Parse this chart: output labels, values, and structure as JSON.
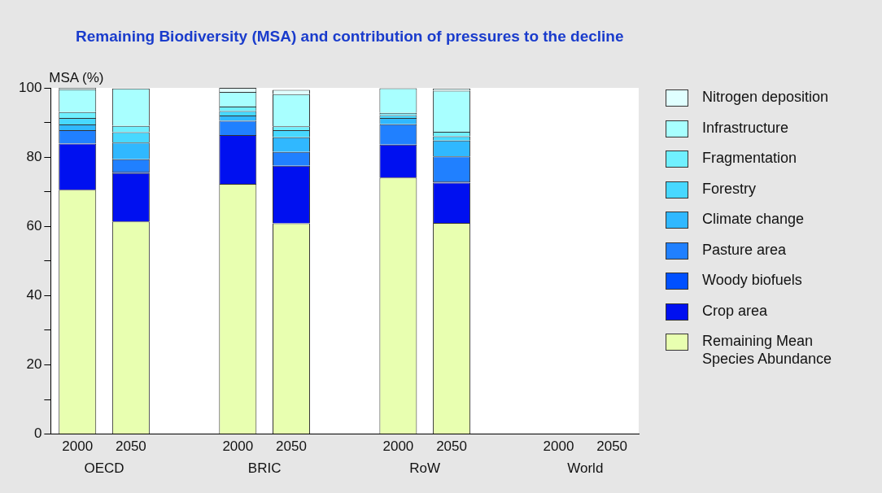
{
  "chart_data": {
    "type": "bar",
    "stacked": true,
    "title": "Remaining Biodiversity (MSA) and contribution of pressures to the decline",
    "ylabel": "MSA (%)",
    "categories": [
      "2000",
      "2050",
      null,
      "2000",
      "2050",
      null,
      "2000",
      "2050",
      null,
      "2000",
      "2050"
    ],
    "annotations": [
      "OECD",
      "BRIC",
      "RoW",
      "World"
    ],
    "series": [
      {
        "name": "Remaining Mean Species Abundance",
        "color": "#e8ffb0",
        "values": [
          70.6,
          61.4,
          null,
          72.3,
          60.9,
          null,
          74.1,
          61.0,
          null,
          null,
          null
        ]
      },
      {
        "name": "Crop area",
        "color": "#0010f0",
        "values": [
          13.3,
          14.0,
          null,
          14.1,
          16.6,
          null,
          9.5,
          11.6,
          null,
          null,
          null
        ]
      },
      {
        "name": "Woody biofuels",
        "color": "#0050ff",
        "values": [
          0,
          0.4,
          null,
          0,
          null,
          null,
          0,
          0.4,
          null,
          null,
          null
        ]
      },
      {
        "name": "Pasture area",
        "color": "#2080ff",
        "values": [
          3.9,
          3.6,
          null,
          4.1,
          4.0,
          null,
          5.9,
          7.2,
          null,
          null,
          null
        ]
      },
      {
        "name": "Climate change",
        "color": "#30b8ff",
        "values": [
          1.6,
          4.8,
          null,
          1.5,
          4.2,
          null,
          1.8,
          4.6,
          null,
          null,
          null
        ]
      },
      {
        "name": "Forestry",
        "color": "#48d8ff",
        "values": [
          1.9,
          3.0,
          null,
          1.3,
          2.1,
          null,
          0.8,
          1.2,
          null,
          null,
          null
        ]
      },
      {
        "name": "Fragmentation",
        "color": "#70f0ff",
        "values": [
          1.7,
          1.8,
          null,
          1.3,
          1.1,
          null,
          0.7,
          1.3,
          null,
          null,
          null
        ]
      },
      {
        "name": "Infrastructure",
        "color": "#a8ffff",
        "values": [
          6.6,
          10.8,
          null,
          4.2,
          9.3,
          null,
          7.1,
          11.9,
          null,
          null,
          null
        ]
      },
      {
        "name": "Nitrogen deposition",
        "color": "#e0ffff",
        "values": [
          0.4,
          null,
          null,
          1.2,
          1.2,
          null,
          null,
          0.6,
          null,
          null,
          null
        ]
      }
    ],
    "ylim": [
      0,
      100
    ],
    "yticks": [
      0,
      {
        "value": 10,
        "label": null
      },
      20,
      {
        "value": 30,
        "label": null
      },
      40,
      {
        "value": 50,
        "label": null
      },
      60,
      {
        "value": 70,
        "label": null
      },
      80,
      {
        "value": 90,
        "label": null
      },
      100
    ],
    "grid": false,
    "legend": "right"
  }
}
